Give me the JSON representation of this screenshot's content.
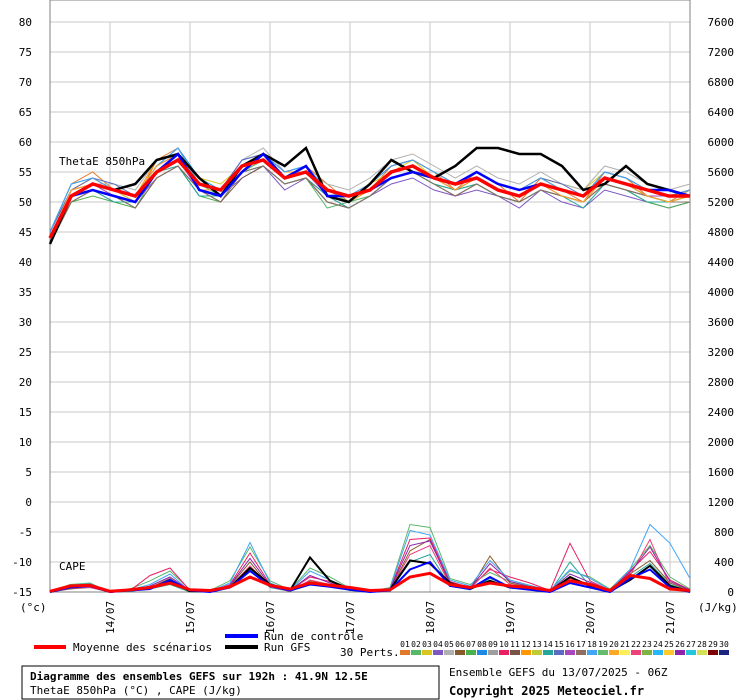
{
  "chart_data": {
    "type": "line",
    "left_axis": {
      "ticks": [
        "80",
        "75",
        "70",
        "65",
        "60",
        "55",
        "50",
        "45",
        "40",
        "35",
        "30",
        "25",
        "20",
        "15",
        "10",
        "5",
        "0",
        "-5",
        "-10",
        "-15"
      ],
      "range": [
        -15,
        80
      ],
      "unit_label": "(°c)"
    },
    "right_axis": {
      "ticks": [
        "7600",
        "7200",
        "6800",
        "6400",
        "6000",
        "5600",
        "5200",
        "4800",
        "4400",
        "4000",
        "3600",
        "3200",
        "2800",
        "2400",
        "2000",
        "1600",
        "1200",
        "800",
        "400",
        "0"
      ],
      "range": [
        0,
        7600
      ],
      "unit_label": "(J/kg)"
    },
    "x_axis": {
      "ticks": [
        "14/07",
        "15/07",
        "16/07",
        "17/07",
        "18/07",
        "19/07",
        "20/07",
        "21/07"
      ],
      "range_hours": [
        0,
        192
      ],
      "step_hours": 6
    },
    "panel_labels": {
      "thetae": "ThetaE 850hPa",
      "cape": "CAPE"
    },
    "grid": true,
    "thetae": {
      "mean": [
        44,
        51,
        53,
        52,
        51,
        55,
        57,
        53,
        52,
        56,
        57,
        54,
        55,
        52,
        51,
        52,
        55,
        56,
        54,
        53,
        54,
        52,
        51,
        53,
        52,
        51,
        54,
        53,
        52,
        51,
        51
      ],
      "control": [
        44,
        51,
        52,
        51,
        50,
        55,
        58,
        52,
        51,
        55,
        58,
        54,
        56,
        51,
        51,
        52,
        54,
        55,
        54,
        53,
        55,
        53,
        52,
        53,
        52,
        51,
        54,
        53,
        52,
        52,
        51
      ],
      "gfs": [
        43,
        51,
        53,
        52,
        53,
        57,
        58,
        54,
        51,
        56,
        58,
        56,
        59,
        51,
        50,
        53,
        57,
        55,
        54,
        56,
        59,
        59,
        58,
        58,
        56,
        52,
        53,
        56,
        53,
        52,
        51
      ],
      "perturbations": [
        [
          45,
          53,
          55,
          52,
          50,
          57,
          59,
          53,
          52,
          57,
          58,
          55,
          56,
          53,
          50,
          52,
          56,
          57,
          55,
          52,
          55,
          53,
          50,
          54,
          52,
          50,
          55,
          54,
          51,
          50,
          52
        ],
        [
          43,
          50,
          52,
          51,
          49,
          55,
          57,
          52,
          50,
          55,
          56,
          53,
          54,
          49,
          50,
          51,
          54,
          55,
          53,
          51,
          53,
          51,
          50,
          52,
          51,
          50,
          53,
          52,
          51,
          50,
          50
        ],
        [
          44,
          52,
          54,
          52,
          51,
          56,
          58,
          54,
          53,
          56,
          57,
          54,
          56,
          52,
          51,
          53,
          55,
          57,
          54,
          53,
          55,
          53,
          52,
          54,
          53,
          52,
          55,
          54,
          52,
          51,
          52
        ],
        [
          43,
          51,
          52,
          50,
          50,
          54,
          56,
          51,
          51,
          54,
          56,
          52,
          54,
          51,
          49,
          51,
          53,
          54,
          52,
          51,
          52,
          51,
          49,
          52,
          50,
          49,
          52,
          51,
          50,
          49,
          50
        ],
        [
          45,
          52,
          53,
          53,
          52,
          57,
          58,
          53,
          52,
          57,
          59,
          55,
          55,
          53,
          52,
          54,
          57,
          58,
          56,
          54,
          56,
          54,
          53,
          55,
          53,
          52,
          56,
          55,
          53,
          52,
          53
        ],
        [
          44,
          51,
          53,
          51,
          50,
          55,
          57,
          52,
          51,
          56,
          57,
          54,
          55,
          51,
          50,
          52,
          55,
          56,
          54,
          52,
          54,
          52,
          51,
          53,
          52,
          51,
          54,
          53,
          51,
          50,
          51
        ],
        [
          43,
          50,
          51,
          50,
          49,
          54,
          56,
          51,
          50,
          55,
          56,
          53,
          54,
          50,
          49,
          51,
          54,
          55,
          53,
          52,
          53,
          51,
          50,
          52,
          51,
          50,
          53,
          52,
          50,
          49,
          50
        ],
        [
          45,
          53,
          54,
          52,
          51,
          56,
          59,
          54,
          52,
          57,
          58,
          55,
          56,
          52,
          51,
          53,
          56,
          57,
          55,
          53,
          55,
          53,
          52,
          54,
          52,
          51,
          55,
          54,
          52,
          51,
          52
        ],
        [
          44,
          51,
          52,
          51,
          50,
          55,
          57,
          53,
          51,
          55,
          57,
          54,
          55,
          52,
          51,
          52,
          55,
          56,
          54,
          53,
          54,
          52,
          51,
          53,
          52,
          51,
          54,
          53,
          51,
          51,
          51
        ],
        [
          43,
          52,
          53,
          52,
          51,
          56,
          58,
          52,
          52,
          56,
          58,
          54,
          56,
          51,
          50,
          52,
          55,
          56,
          54,
          52,
          54,
          52,
          51,
          53,
          51,
          50,
          54,
          53,
          51,
          50,
          51
        ],
        [
          44,
          50,
          52,
          51,
          49,
          54,
          56,
          52,
          50,
          54,
          56,
          53,
          54,
          50,
          49,
          51,
          54,
          55,
          53,
          51,
          53,
          51,
          50,
          52,
          51,
          50,
          53,
          52,
          51,
          50,
          50
        ],
        [
          45,
          52,
          54,
          52,
          51,
          57,
          58,
          53,
          52,
          56,
          58,
          55,
          55,
          52,
          51,
          53,
          56,
          57,
          55,
          53,
          55,
          53,
          52,
          54,
          52,
          51,
          55,
          54,
          52,
          51,
          52
        ],
        [
          44,
          51,
          53,
          52,
          50,
          55,
          57,
          52,
          51,
          55,
          57,
          54,
          55,
          51,
          50,
          52,
          55,
          56,
          54,
          52,
          54,
          52,
          51,
          53,
          52,
          51,
          54,
          53,
          51,
          50,
          51
        ],
        [
          43,
          51,
          52,
          50,
          50,
          55,
          56,
          51,
          51,
          55,
          56,
          53,
          54,
          51,
          49,
          51,
          54,
          55,
          53,
          52,
          53,
          51,
          50,
          52,
          51,
          49,
          53,
          52,
          50,
          50,
          50
        ],
        [
          45,
          52,
          54,
          53,
          51,
          56,
          58,
          53,
          52,
          57,
          58,
          55,
          56,
          52,
          51,
          53,
          56,
          57,
          55,
          53,
          55,
          53,
          52,
          54,
          53,
          51,
          55,
          54,
          52,
          51,
          52
        ],
        [
          44,
          51,
          53,
          51,
          50,
          55,
          57,
          52,
          51,
          56,
          57,
          54,
          55,
          51,
          50,
          52,
          55,
          56,
          54,
          52,
          54,
          52,
          51,
          53,
          52,
          51,
          54,
          53,
          51,
          51,
          51
        ],
        [
          43,
          50,
          52,
          51,
          49,
          54,
          56,
          52,
          50,
          55,
          56,
          53,
          54,
          50,
          49,
          51,
          54,
          55,
          53,
          51,
          53,
          51,
          50,
          52,
          51,
          50,
          53,
          52,
          51,
          50,
          50
        ],
        [
          45,
          53,
          54,
          52,
          51,
          56,
          59,
          53,
          52,
          56,
          58,
          55,
          56,
          52,
          51,
          53,
          56,
          57,
          55,
          53,
          55,
          53,
          52,
          54,
          52,
          51,
          55,
          54,
          52,
          51,
          52
        ],
        [
          44,
          51,
          52,
          51,
          50,
          55,
          57,
          53,
          51,
          55,
          57,
          54,
          55,
          52,
          50,
          52,
          55,
          56,
          54,
          53,
          54,
          52,
          51,
          53,
          52,
          51,
          54,
          53,
          51,
          50,
          51
        ],
        [
          44,
          52,
          53,
          52,
          51,
          56,
          58,
          52,
          52,
          56,
          58,
          54,
          56,
          51,
          50,
          52,
          55,
          56,
          54,
          52,
          54,
          52,
          51,
          53,
          51,
          50,
          54,
          53,
          51,
          50,
          51
        ]
      ]
    },
    "cape": {
      "mean": [
        10,
        80,
        90,
        10,
        30,
        60,
        120,
        30,
        20,
        70,
        200,
        90,
        40,
        120,
        90,
        60,
        20,
        30,
        200,
        250,
        100,
        60,
        120,
        80,
        60,
        20,
        150,
        100,
        20,
        220,
        180,
        40,
        20
      ],
      "control": [
        0,
        60,
        80,
        0,
        20,
        40,
        160,
        20,
        0,
        60,
        280,
        80,
        20,
        100,
        70,
        30,
        0,
        20,
        300,
        400,
        80,
        40,
        200,
        60,
        30,
        0,
        120,
        60,
        0,
        180,
        300,
        60,
        0
      ],
      "gfs": [
        0,
        70,
        90,
        0,
        30,
        50,
        150,
        10,
        10,
        60,
        320,
        100,
        20,
        460,
        150,
        40,
        10,
        30,
        420,
        380,
        120,
        40,
        150,
        60,
        50,
        10,
        200,
        80,
        10,
        160,
        350,
        80,
        10
      ],
      "perturbations": [
        [
          0,
          100,
          120,
          0,
          40,
          150,
          280,
          30,
          20,
          150,
          600,
          150,
          30,
          320,
          200,
          50,
          10,
          60,
          900,
          860,
          180,
          100,
          260,
          140,
          80,
          30,
          280,
          200,
          40,
          300,
          620,
          200,
          40
        ],
        [
          0,
          40,
          60,
          0,
          10,
          60,
          180,
          10,
          0,
          80,
          400,
          70,
          10,
          150,
          100,
          30,
          0,
          30,
          550,
          700,
          100,
          40,
          480,
          120,
          60,
          10,
          150,
          100,
          0,
          240,
          420,
          120,
          20
        ],
        [
          10,
          80,
          100,
          0,
          20,
          220,
          320,
          20,
          10,
          100,
          520,
          100,
          20,
          200,
          140,
          40,
          10,
          40,
          700,
          720,
          140,
          60,
          300,
          200,
          120,
          20,
          650,
          150,
          20,
          280,
          540,
          160,
          30
        ],
        [
          0,
          60,
          70,
          0,
          10,
          40,
          100,
          0,
          0,
          60,
          300,
          60,
          10,
          100,
          80,
          20,
          0,
          20,
          400,
          500,
          80,
          30,
          180,
          80,
          40,
          0,
          400,
          80,
          0,
          200,
          380,
          100,
          10
        ],
        [
          0,
          90,
          110,
          0,
          30,
          100,
          240,
          10,
          10,
          120,
          660,
          120,
          20,
          280,
          160,
          40,
          10,
          50,
          820,
          760,
          160,
          80,
          420,
          160,
          90,
          20,
          300,
          180,
          30,
          300,
          900,
          650,
          180
        ],
        [
          0,
          50,
          60,
          0,
          20,
          60,
          140,
          10,
          0,
          70,
          350,
          70,
          10,
          160,
          100,
          30,
          0,
          30,
          500,
          620,
          90,
          40,
          320,
          100,
          50,
          10,
          180,
          90,
          10,
          220,
          700,
          80,
          20
        ],
        [
          10,
          70,
          80,
          0,
          20,
          80,
          200,
          20,
          10,
          90,
          450,
          90,
          20,
          220,
          120,
          40,
          10,
          40,
          620,
          680,
          120,
          50,
          380,
          140,
          70,
          20,
          240,
          130,
          20,
          260,
          600,
          140,
          30
        ]
      ]
    }
  },
  "legend": {
    "mean": "Moyenne des scénarios",
    "control": "Run de contrôle",
    "gfs": "Run GFS",
    "perts_label": "30 Perts.",
    "swatch_numbers": [
      "01",
      "02",
      "03",
      "04",
      "05",
      "06",
      "07",
      "08",
      "09",
      "10",
      "11",
      "12",
      "13",
      "14",
      "15",
      "16",
      "17",
      "18",
      "19",
      "20",
      "21",
      "22",
      "23",
      "24",
      "25",
      "26",
      "27",
      "28",
      "29",
      "30"
    ],
    "swatch_colors": [
      "#e07a2a",
      "#58b86a",
      "#d9c61e",
      "#7e57c2",
      "#b0b0b0",
      "#8b5a2b",
      "#4caf50",
      "#1e88e5",
      "#9e9e9e",
      "#e91e63",
      "#795548",
      "#ff9800",
      "#c0ca33",
      "#26a69a",
      "#5c6bc0",
      "#ab47bc",
      "#8d6e63",
      "#42a5f5",
      "#66bb6a",
      "#ffa726",
      "#ffee58",
      "#ec407a",
      "#7cb342",
      "#29b6f6",
      "#ffca28",
      "#8e24aa",
      "#26c6da",
      "#d4e157",
      "#7e0000",
      "#1a237e"
    ]
  },
  "info": {
    "title": "Diagramme des ensembles GEFS sur 192h : 41.9N 12.5E",
    "subtitle": "ThetaE 850hPa (°C) , CAPE (J/kg)",
    "run": "Ensemble GEFS du 13/07/2025 - 06Z",
    "copyright": "Copyright 2025 Meteociel.fr"
  },
  "colors": {
    "mean": "#ff0000",
    "control": "#0000ff",
    "gfs": "#000000",
    "grid": "#c8c8c8"
  }
}
